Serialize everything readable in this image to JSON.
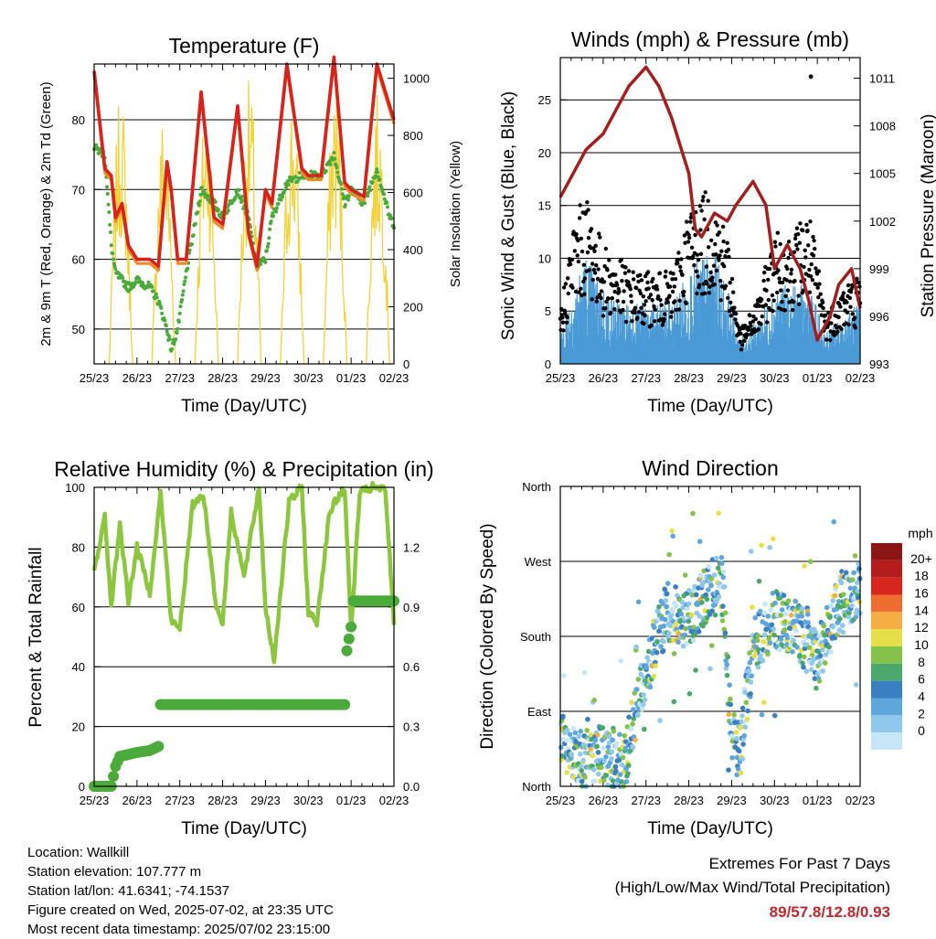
{
  "colors": {
    "temp_2m": "#d8221c",
    "temp_9m": "#f08a24",
    "dewpoint": "#4aaa3a",
    "solar": "#f2d23c",
    "wind": "#4a9ad6",
    "gust": "#000000",
    "pressure": "#a31f1f",
    "rh": "#8cc63f",
    "precip": "#4aaa3a",
    "extremes": "#c0282d"
  },
  "x_ticks": [
    "25/23",
    "26/23",
    "27/23",
    "28/23",
    "29/23",
    "30/23",
    "01/23",
    "02/23"
  ],
  "chart_data": [
    {
      "type": "line",
      "title": "Temperature (F)",
      "xlabel": "Time (Day/UTC)",
      "ylabel": "2m & 9m T (Red, Orange) & 2m Td (Green)",
      "ylabel_right": "Solar Insolation (Yellow)",
      "ylim": [
        45,
        88
      ],
      "yticks": [
        50,
        60,
        70,
        80
      ],
      "ylim_right": [
        0,
        1050
      ],
      "yticks_right": [
        0,
        200,
        400,
        600,
        800,
        1000
      ],
      "grid": true,
      "x_days": [
        0,
        0.25,
        0.4,
        0.5,
        0.65,
        0.8,
        1.0,
        1.3,
        1.5,
        1.7,
        1.8,
        1.95,
        2.15,
        2.5,
        2.8,
        3.0,
        3.35,
        3.6,
        3.8,
        4.0,
        4.15,
        4.5,
        4.85,
        5.0,
        5.3,
        5.6,
        5.85,
        6.0,
        6.3,
        6.6,
        6.9,
        7.0
      ],
      "series": [
        {
          "name": "2m T",
          "values": [
            87,
            73,
            72,
            66,
            68,
            62,
            60,
            60,
            59,
            74,
            70,
            60,
            60,
            84,
            66,
            65,
            82,
            64,
            59,
            70,
            68,
            88,
            73,
            72,
            72,
            89,
            71,
            70,
            69,
            88,
            82,
            80
          ]
        },
        {
          "name": "2m Td",
          "values": [
            76,
            75,
            62,
            58,
            57,
            56,
            57,
            56,
            54,
            50,
            47,
            50,
            58,
            70,
            68,
            66,
            70,
            66,
            59,
            60,
            66,
            71,
            72,
            72,
            72,
            75,
            68,
            70,
            68,
            73,
            66,
            65
          ]
        }
      ],
      "solar": {
        "name": "Solar Insolation",
        "peak_day_fraction": 0.7,
        "peaks": [
          950,
          900,
          950,
          1000,
          950,
          1000,
          950,
          1000
        ]
      }
    },
    {
      "type": "line",
      "title": "Winds (mph) & Pressure (mb)",
      "xlabel": "Time (Day/UTC)",
      "ylabel": "Sonic Wind & Gust (Blue, Black)",
      "ylabel_right": "Station Pressure (Maroon)",
      "ylim": [
        0,
        29
      ],
      "yticks": [
        0,
        5,
        10,
        15,
        20,
        25
      ],
      "ylim_right": [
        993,
        1012.3
      ],
      "yticks_right": [
        993,
        996,
        999,
        1002,
        1005,
        1008,
        1011
      ],
      "grid": true,
      "pressure": {
        "x_days": [
          0,
          0.3,
          0.6,
          1.0,
          1.3,
          1.6,
          2.0,
          2.3,
          2.6,
          3.0,
          3.15,
          3.3,
          3.6,
          3.9,
          4.1,
          4.5,
          4.8,
          5.0,
          5.3,
          5.6,
          5.8,
          6.0,
          6.3,
          6.5,
          6.8,
          7.0
        ],
        "values": [
          1003.5,
          1005,
          1006.5,
          1007.5,
          1009,
          1010.5,
          1011.7,
          1010.5,
          1008.5,
          1005,
          1001.5,
          1001,
          1002.5,
          1002,
          1003,
          1004.5,
          1003,
          999,
          1000.5,
          999,
          997,
          994.5,
          996,
          998,
          999,
          996.5
        ]
      },
      "wind_envelope": {
        "x_days": [
          0,
          0.3,
          0.6,
          1.0,
          1.4,
          1.8,
          2.2,
          2.6,
          3.0,
          3.3,
          3.6,
          3.9,
          4.2,
          4.6,
          5.0,
          5.4,
          5.8,
          6.2,
          6.6,
          7.0
        ],
        "sustained": [
          2,
          5,
          7,
          5,
          4,
          4,
          4,
          4,
          6,
          7,
          7,
          5,
          1.5,
          3,
          5,
          5,
          5,
          2,
          3,
          4
        ],
        "gust": [
          4,
          11,
          13,
          9,
          8,
          7,
          7,
          7,
          12,
          13,
          13,
          10,
          2.5,
          5,
          10,
          10,
          12,
          4,
          6,
          7
        ]
      },
      "max_gust": 27.2
    },
    {
      "type": "line",
      "title": "Relative Humidity (%) & Precipitation (in)",
      "xlabel": "Time (Day/UTC)",
      "ylabel": "Percent & Total Rainfall",
      "ylim": [
        0,
        100
      ],
      "yticks": [
        0,
        20,
        40,
        60,
        80,
        100
      ],
      "ylim_right": [
        0,
        1.5
      ],
      "yticks_right": [
        "0.0",
        "0.3",
        "0.6",
        "0.9",
        "1.2"
      ],
      "grid": true,
      "series": [
        {
          "name": "Relative Humidity",
          "x_days": [
            0,
            0.25,
            0.4,
            0.6,
            0.8,
            1.0,
            1.3,
            1.55,
            1.8,
            2.0,
            2.3,
            2.55,
            2.85,
            3.0,
            3.2,
            3.5,
            3.85,
            4.0,
            4.2,
            4.55,
            4.85,
            5.0,
            5.2,
            5.5,
            5.85,
            6.0,
            6.2,
            6.5,
            6.8,
            7.0
          ],
          "values": [
            72,
            90,
            60,
            88,
            62,
            80,
            65,
            98,
            55,
            53,
            94,
            98,
            60,
            55,
            92,
            70,
            100,
            60,
            42,
            95,
            100,
            58,
            55,
            92,
            100,
            52,
            98,
            100,
            99,
            55
          ]
        },
        {
          "name": "Total Rainfall",
          "x_days": [
            0,
            0.4,
            0.5,
            0.6,
            1.0,
            1.3,
            1.5,
            1.52,
            1.55,
            5.85,
            5.9,
            6.0,
            6.05,
            7.0
          ],
          "values": [
            0,
            0,
            0.1,
            0.15,
            0.17,
            0.18,
            0.2,
            0.3,
            0.41,
            0.41,
            0.68,
            0.8,
            0.93,
            0.93
          ]
        }
      ]
    },
    {
      "type": "scatter",
      "title": "Wind Direction",
      "xlabel": "Time (Day/UTC)",
      "ylabel": "Direction (Colored By Speed)",
      "yticks": [
        "North",
        "East",
        "South",
        "West",
        "North"
      ],
      "ylim": [
        0,
        360
      ],
      "direction_trend": {
        "x_days": [
          0,
          0.5,
          1.0,
          1.5,
          2.0,
          2.5,
          3.0,
          3.5,
          3.8,
          4.0,
          4.2,
          4.5,
          5.0,
          5.5,
          6.0,
          6.5,
          7.0
        ],
        "deg": [
          60,
          30,
          40,
          30,
          140,
          210,
          200,
          240,
          240,
          60,
          40,
          170,
          200,
          190,
          150,
          220,
          240
        ]
      },
      "colorbar": {
        "title": "mph",
        "labels": [
          "0",
          "2",
          "4",
          "6",
          "8",
          "10",
          "12",
          "14",
          "16",
          "18",
          "20+"
        ],
        "colors": [
          "#c6e6f7",
          "#8fc8ec",
          "#5fa6dc",
          "#3a7fc2",
          "#4aa86b",
          "#84c24a",
          "#e5e04a",
          "#f6ad44",
          "#ef6d2e",
          "#d8261f",
          "#b51d1d",
          "#8c1515"
        ]
      }
    }
  ],
  "info": {
    "location": "Location: Wallkill",
    "elevation": "Station elevation: 107.777 m",
    "latlon": "Station lat/lon: 41.6341; -74.1537",
    "created": "Figure created on Wed, 2025-07-02, at 23:35 UTC",
    "recent": "Most recent data timestamp: 2025/07/02 23:15:00"
  },
  "extremes": {
    "title": "Extremes For Past 7 Days",
    "subtitle": "(High/Low/Max Wind/Total Precipitation)",
    "values": "89/57.8/12.8/0.93"
  }
}
